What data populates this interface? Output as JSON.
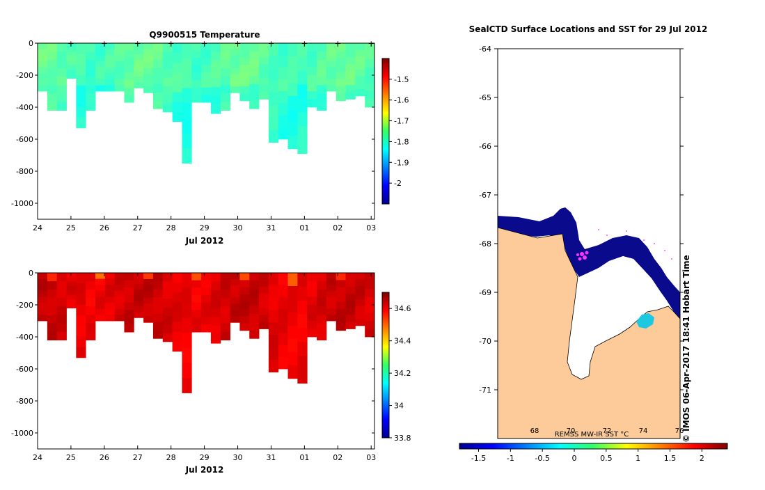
{
  "chart_data": [
    {
      "type": "heatmap",
      "title": "Q9900515  Temperature",
      "xlabel": "Jul 2012",
      "ylabel": "",
      "x_ticks": [
        "24",
        "25",
        "26",
        "27",
        "28",
        "29",
        "30",
        "31",
        "01",
        "02",
        "03"
      ],
      "x_range": [
        24,
        34.1
      ],
      "y_ticks": [
        "0",
        "-200",
        "-400",
        "-600",
        "-800",
        "-1000"
      ],
      "y_values": [
        0,
        -200,
        -400,
        -600,
        -800,
        -1000
      ],
      "ylim": [
        -1100,
        0
      ],
      "colorbar": {
        "ticks": [
          "-1.5",
          "-1.6",
          "-1.7",
          "-1.8",
          "-1.9",
          "-2"
        ],
        "tick_values": [
          -1.5,
          -1.6,
          -1.7,
          -1.8,
          -1.9,
          -2
        ],
        "range": [
          -2.1,
          -1.4
        ]
      },
      "profile_markers_x": [
        25,
        26,
        27,
        28,
        29,
        30,
        31,
        32,
        33,
        34
      ],
      "profile_max_depth": [
        300,
        420,
        420,
        220,
        530,
        420,
        300,
        300,
        300,
        370,
        280,
        310,
        410,
        430,
        490,
        750,
        370,
        370,
        440,
        420,
        310,
        360,
        410,
        350,
        620,
        600,
        660,
        690,
        400,
        420,
        300,
        360,
        350,
        330,
        400
      ],
      "dominant_value": -1.78
    },
    {
      "type": "heatmap",
      "title": "",
      "xlabel": "Jul 2012",
      "ylabel": "",
      "x_ticks": [
        "24",
        "25",
        "26",
        "27",
        "28",
        "29",
        "30",
        "31",
        "01",
        "02",
        "03"
      ],
      "x_range": [
        24,
        34.1
      ],
      "y_ticks": [
        "0",
        "-200",
        "-400",
        "-600",
        "-800",
        "-1000"
      ],
      "y_values": [
        0,
        -200,
        -400,
        -600,
        -800,
        -1000
      ],
      "ylim": [
        -1100,
        0
      ],
      "colorbar": {
        "ticks": [
          "34.6",
          "34.4",
          "34.2",
          "34",
          "33.8"
        ],
        "tick_values": [
          34.6,
          34.4,
          34.2,
          34,
          33.8
        ],
        "range": [
          33.8,
          34.7
        ]
      },
      "dominant_value": 34.62
    },
    {
      "type": "map",
      "title": "SealCTD Surface Locations and SST for 29 Jul 2012",
      "y_ticks": [
        "-64",
        "-65",
        "-66",
        "-67",
        "-68",
        "-69",
        "-70",
        "-71"
      ],
      "y_values": [
        -64,
        -65,
        -66,
        -67,
        -68,
        -69,
        -70,
        -71
      ],
      "ylim": [
        -72,
        -64
      ],
      "colorbar": {
        "label": "REMSS MW-IR SST °C",
        "ticks": [
          "-1.5",
          "-1",
          "-0.5",
          "0",
          "0.5",
          "1",
          "1.5",
          "2"
        ],
        "tick_values": [
          -1.5,
          -1,
          -0.5,
          0,
          0.5,
          1,
          1.5,
          2
        ],
        "range": [
          -1.8,
          2.4
        ]
      },
      "lon_labels": [
        "68",
        "70",
        "72",
        "74",
        "76"
      ],
      "credit": "©  IMOS 06-Apr-2017 18:41 Hobart Time"
    }
  ]
}
